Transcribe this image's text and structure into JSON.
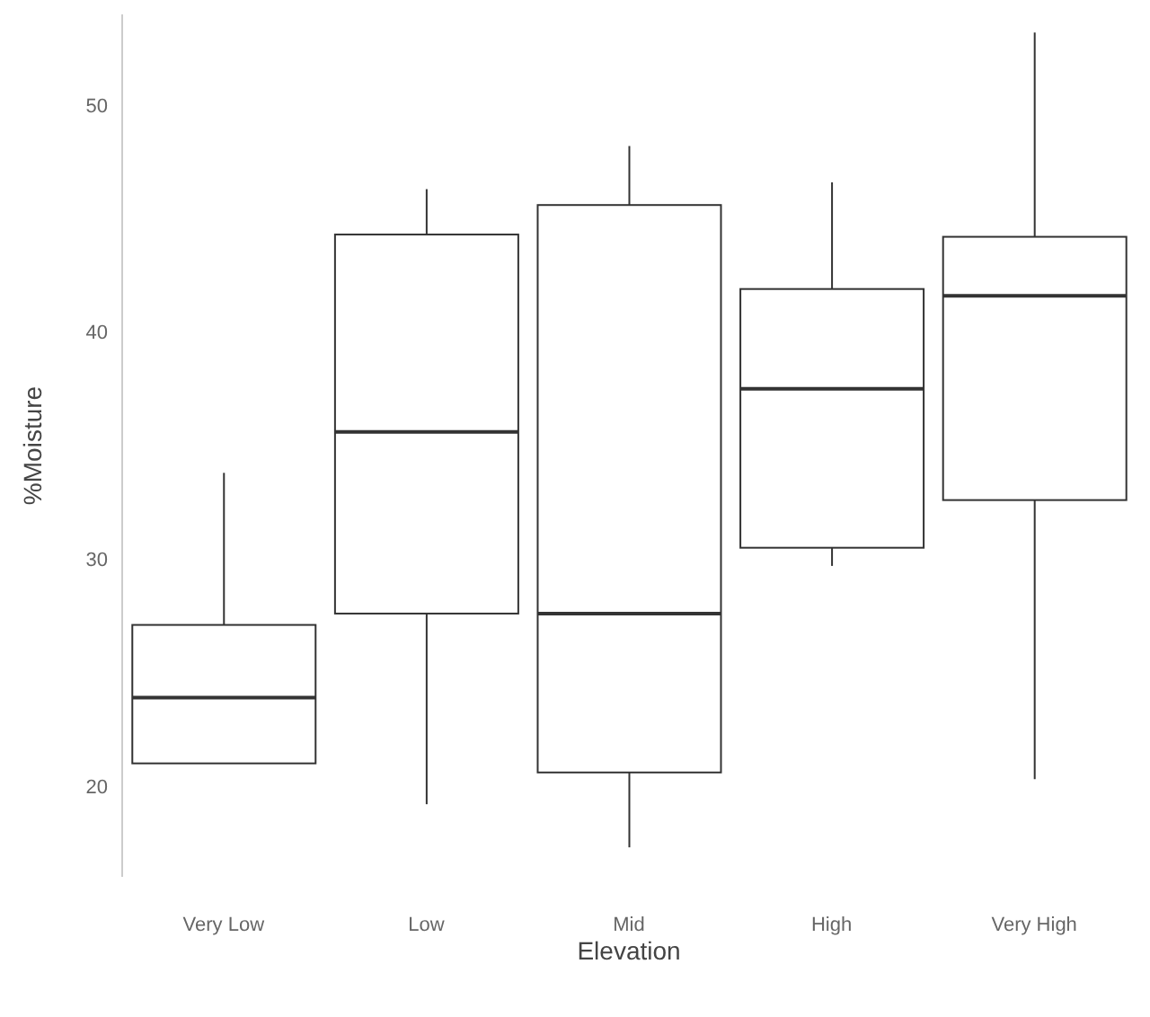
{
  "chart_data": {
    "type": "box",
    "xlabel": "Elevation",
    "ylabel": "%Moisture",
    "categories": [
      "Very Low",
      "Low",
      "Mid",
      "High",
      "Very High"
    ],
    "boxes": [
      {
        "low": 21.0,
        "q1": 21.0,
        "median": 23.9,
        "q3": 27.1,
        "high": 33.8
      },
      {
        "low": 19.2,
        "q1": 27.6,
        "median": 35.6,
        "q3": 44.3,
        "high": 46.3
      },
      {
        "low": 17.3,
        "q1": 20.6,
        "median": 27.6,
        "q3": 45.6,
        "high": 48.2
      },
      {
        "low": 29.7,
        "q1": 30.5,
        "median": 37.5,
        "q3": 41.9,
        "high": 46.6
      },
      {
        "low": 20.3,
        "q1": 32.6,
        "median": 41.6,
        "q3": 44.2,
        "high": 53.2
      }
    ],
    "color": "#333333",
    "ylim": [
      16,
      54
    ],
    "yticks": [
      20,
      30,
      40,
      50
    ],
    "grid": false
  }
}
